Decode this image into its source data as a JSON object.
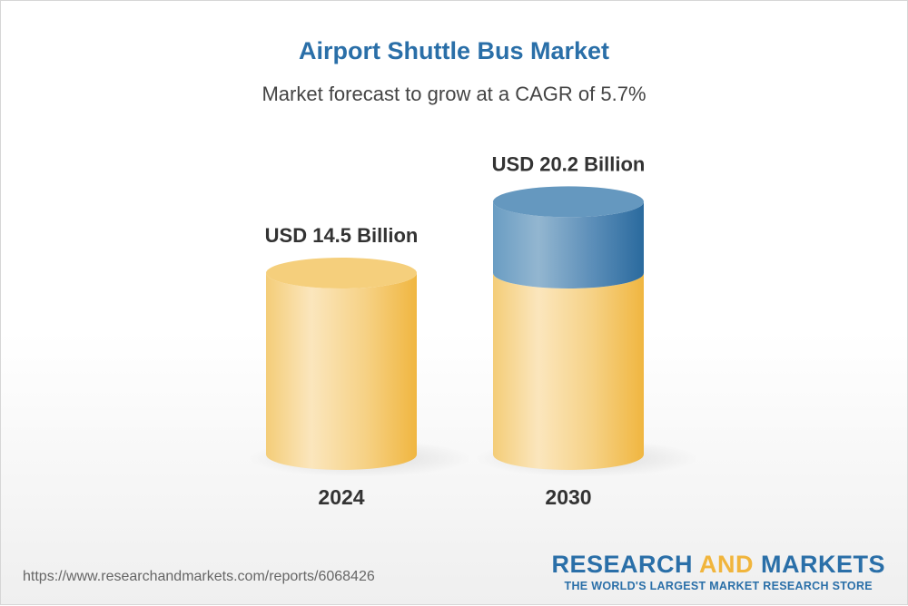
{
  "header": {
    "title": "Airport Shuttle Bus Market",
    "subtitle": "Market forecast to grow at a CAGR of 5.7%"
  },
  "chart_data": {
    "type": "bar",
    "style": "3d-cylinder",
    "categories": [
      "2024",
      "2030"
    ],
    "values": [
      14.5,
      20.2
    ],
    "unit": "USD Billion",
    "data_labels": [
      "USD 14.5 Billion",
      "USD 20.2 Billion"
    ],
    "colors": {
      "base": "#f2bd4e",
      "growth": "#3e7bab"
    }
  },
  "footer": {
    "url": "https://www.researchandmarkets.com/reports/6068426",
    "logo_part1": "RESEARCH ",
    "logo_part2": "AND",
    "logo_part3": " MARKETS",
    "tagline": "THE WORLD'S LARGEST MARKET RESEARCH STORE"
  }
}
